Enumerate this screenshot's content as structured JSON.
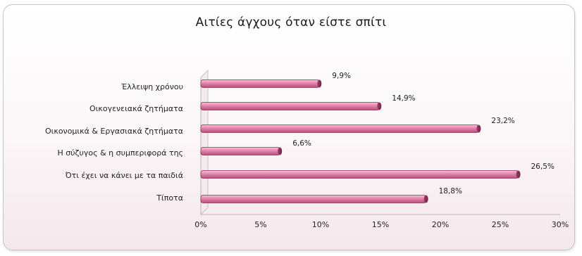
{
  "chart_data": {
    "type": "bar",
    "orientation": "horizontal",
    "title": "Αιτίες άγχους όταν είστε σπίτι",
    "categories": [
      "Έλλειψη χρόνου",
      "Οικογενειακά ζητήματα",
      "Οικονομικά & Εργασιακά ζητήματα",
      "Η σύζυγος & η συμπεριφορά της",
      "Ότι έχει να κάνει με τα παιδιά",
      "Τίποτα"
    ],
    "values": [
      9.9,
      14.9,
      23.2,
      6.6,
      26.5,
      18.8
    ],
    "value_labels": [
      "9,9%",
      "14,9%",
      "23,2%",
      "6,6%",
      "26,5%",
      "18,8%"
    ],
    "xlim": [
      0,
      30
    ],
    "x_ticks": [
      "0%",
      "5%",
      "10%",
      "15%",
      "20%",
      "25%",
      "30%"
    ],
    "xlabel": "",
    "ylabel": "",
    "grid": false,
    "legend": "none",
    "bar_color": "#d9779c",
    "bar_edge_color": "#8a2f55"
  }
}
